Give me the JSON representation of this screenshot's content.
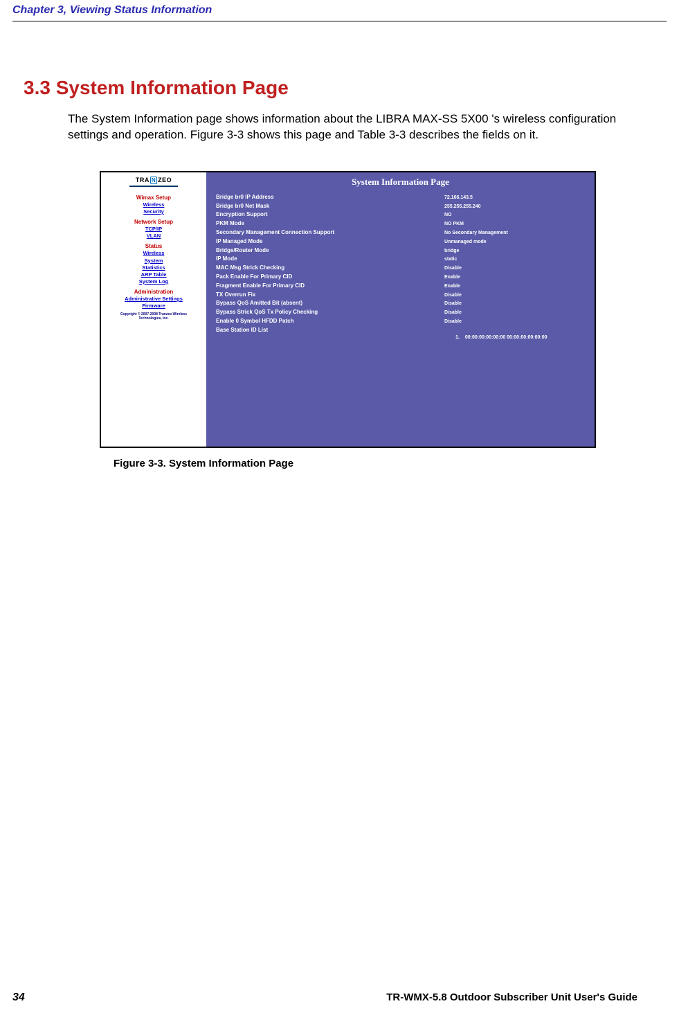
{
  "header": {
    "chapter": "Chapter 3, Viewing Status Information"
  },
  "section": {
    "title": "3.3 System Information Page",
    "body": "The System Information page shows information about the LIBRA MAX-SS 5X00 's wireless configuration settings and operation. Figure 3-3 shows this page and Table 3-3 describes the fields on it."
  },
  "screenshot": {
    "logo_text_1": "TRA",
    "logo_text_n": "N",
    "logo_text_2": "ZEO",
    "nav": {
      "s1_title": "Wimax Setup",
      "s1_links": [
        "Wireless",
        "Security"
      ],
      "s2_title": "Network Setup",
      "s2_links": [
        "TCP/IP",
        "VLAN"
      ],
      "s3_title": "Status",
      "s3_links": [
        "Wireless",
        "System",
        "Statistics",
        "ARP Table",
        "System Log"
      ],
      "s4_title": "Administration",
      "s4_links": [
        "Administrative Settings",
        "Firmware"
      ]
    },
    "copyright_1": "Copyright © 2007-2008 Tranzeo Wireless",
    "copyright_2": "Technologies, Inc.",
    "panel_title": "System Information Page",
    "rows": [
      {
        "label": "Bridge br0 IP Address",
        "value": "72.166.143.5"
      },
      {
        "label": "Bridge br0 Net Mask",
        "value": "255.255.255.240"
      },
      {
        "label": "Encryption Support",
        "value": "NO"
      },
      {
        "label": "PKM Mode",
        "value": "NO PKM"
      },
      {
        "label": "Secondary Management Connection Support",
        "value": "No Secondary Management"
      },
      {
        "label": "IP Managed Mode",
        "value": "Unmanaged mode"
      },
      {
        "label": "Bridge/Router Mode",
        "value": "bridge"
      },
      {
        "label": "IP Mode",
        "value": "static"
      },
      {
        "label": "MAC Msg Strick Checking",
        "value": "Disable"
      },
      {
        "label": "Pack Enable For Primary CID",
        "value": "Enable"
      },
      {
        "label": "Fragment Enable For Primary CID",
        "value": "Enable"
      },
      {
        "label": "TX Overrun Fix",
        "value": "Disable"
      },
      {
        "label": "Bypass QoS Amitted Bit (absent)",
        "value": "Disable"
      },
      {
        "label": "Bypass Strick QoS Tx Policy Checking",
        "value": "Disable"
      },
      {
        "label": "Enable 0 Symbol HFDD Patch",
        "value": "Disable"
      },
      {
        "label": "Base Station ID List",
        "value": ""
      }
    ],
    "bs_list": {
      "num": "1.",
      "val": "00:00:00:00:00:00 00:00:00:00:00:00"
    }
  },
  "caption": "Figure 3-3. System Information Page",
  "footer": {
    "page": "34",
    "guide": "TR-WMX-5.8 Outdoor Subscriber Unit User's Guide"
  }
}
